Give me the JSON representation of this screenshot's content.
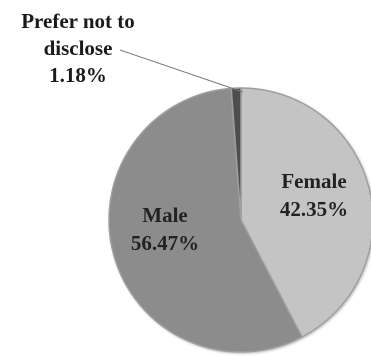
{
  "chart_data": {
    "type": "pie",
    "title": "",
    "slices": [
      {
        "label": "Female",
        "value": 42.35,
        "value_text": "42.35%",
        "color": "#c4c4c4"
      },
      {
        "label": "Male",
        "value": 56.47,
        "value_text": "56.47%",
        "color": "#8c8c8c"
      },
      {
        "label": "Prefer not to disclose",
        "label_lines": [
          "Prefer not to",
          "disclose"
        ],
        "value": 1.18,
        "value_text": "1.18%",
        "color": "#4d4d4d"
      }
    ],
    "legend": "none",
    "start_angle": "12 o'clock",
    "direction": "clockwise"
  }
}
